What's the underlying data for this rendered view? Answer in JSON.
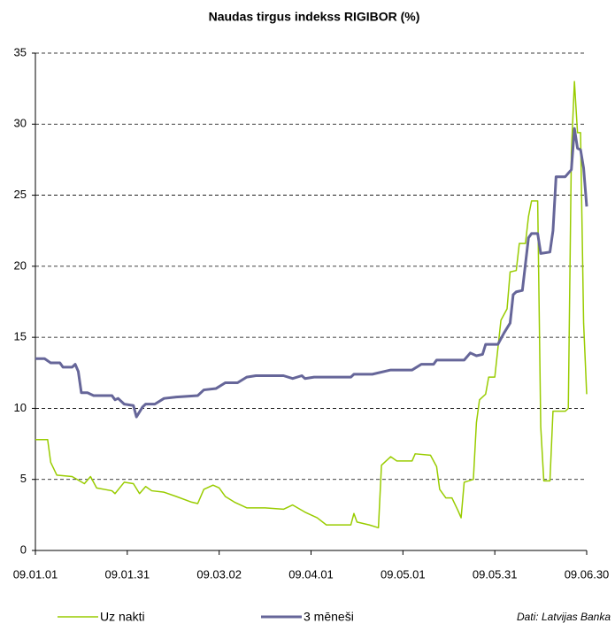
{
  "chart_data": {
    "type": "line",
    "title": "Naudas tirgus indekss RIGIBOR (%)",
    "source": "Dati: Latvijas Banka",
    "legend": "bottom",
    "grid": true,
    "xlim": [
      "09.01.01",
      "09.06.30"
    ],
    "xticks": [
      "09.01.01",
      "09.01.31",
      "09.03.02",
      "09.04.01",
      "09.05.01",
      "09.05.31",
      "09.06.30"
    ],
    "ylim": [
      0,
      35
    ],
    "yticks": [
      0,
      5,
      10,
      15,
      20,
      25,
      30,
      35
    ],
    "series": [
      {
        "name": "Uz nakti",
        "color": "#99cc00",
        "x": [
          "09.01.01",
          "09.01.05",
          "09.01.06",
          "09.01.08",
          "09.01.13",
          "09.01.17",
          "09.01.19",
          "09.01.21",
          "09.01.26",
          "09.01.27",
          "09.01.30",
          "09.02.02",
          "09.02.04",
          "09.02.06",
          "09.02.08",
          "09.02.12",
          "09.02.16",
          "09.02.21",
          "09.02.23",
          "09.02.25",
          "09.02.28",
          "09.03.02",
          "09.03.04",
          "09.03.07",
          "09.03.11",
          "09.03.17",
          "09.03.23",
          "09.03.26",
          "09.03.30",
          "09.04.03",
          "09.04.06",
          "09.04.14",
          "09.04.15",
          "09.04.16",
          "09.04.20",
          "09.04.23",
          "09.04.24",
          "09.04.27",
          "09.04.29",
          "09.05.04",
          "09.05.05",
          "09.05.10",
          "09.05.12",
          "09.05.13",
          "09.05.15",
          "09.05.17",
          "09.05.19",
          "09.05.20",
          "09.05.21",
          "09.05.24",
          "09.05.25",
          "09.05.26",
          "09.05.28",
          "09.05.29",
          "09.05.31",
          "09.06.02",
          "09.06.04",
          "09.06.05",
          "09.06.07",
          "09.06.08",
          "09.06.10",
          "09.06.11",
          "09.06.12",
          "09.06.14",
          "09.06.15",
          "09.06.16",
          "09.06.18",
          "09.06.19",
          "09.06.23",
          "09.06.24",
          "09.06.25",
          "09.06.26",
          "09.06.27",
          "09.06.28",
          "09.06.29",
          "09.06.30"
        ],
        "values": [
          7.8,
          7.8,
          6.2,
          5.3,
          5.2,
          4.7,
          5.2,
          4.4,
          4.2,
          4.0,
          4.8,
          4.7,
          4.0,
          4.5,
          4.2,
          4.1,
          3.8,
          3.4,
          3.3,
          4.3,
          4.6,
          4.4,
          3.8,
          3.4,
          3.0,
          3.0,
          2.9,
          3.2,
          2.7,
          2.3,
          1.8,
          1.8,
          2.6,
          2.0,
          1.8,
          1.6,
          6.0,
          6.6,
          6.3,
          6.3,
          6.8,
          6.7,
          5.9,
          4.3,
          3.7,
          3.7,
          2.8,
          2.3,
          4.8,
          5.0,
          9.0,
          10.6,
          11.0,
          12.2,
          12.2,
          16.2,
          17.0,
          19.6,
          19.7,
          21.6,
          21.6,
          23.5,
          24.6,
          24.6,
          8.7,
          4.9,
          4.9,
          9.8,
          9.8,
          10.0,
          28.0,
          33.0,
          29.4,
          29.4,
          16.0,
          11.0
        ]
      },
      {
        "name": "3 mēneši",
        "color": "#666699",
        "x": [
          "09.01.01",
          "09.01.04",
          "09.01.06",
          "09.01.09",
          "09.01.10",
          "09.01.13",
          "09.01.14",
          "09.01.15",
          "09.01.16",
          "09.01.18",
          "09.01.20",
          "09.01.26",
          "09.01.27",
          "09.01.28",
          "09.01.30",
          "09.02.02",
          "09.02.03",
          "09.02.05",
          "09.02.06",
          "09.02.09",
          "09.02.12",
          "09.02.16",
          "09.02.23",
          "09.02.25",
          "09.03.01",
          "09.03.04",
          "09.03.08",
          "09.03.11",
          "09.03.14",
          "09.03.23",
          "09.03.26",
          "09.03.29",
          "09.03.30",
          "09.04.02",
          "09.04.14",
          "09.04.15",
          "09.04.21",
          "09.04.27",
          "09.05.04",
          "09.05.07",
          "09.05.11",
          "09.05.12",
          "09.05.21",
          "09.05.23",
          "09.05.25",
          "09.05.27",
          "09.05.28",
          "09.06.01",
          "09.06.03",
          "09.06.05",
          "09.06.06",
          "09.06.07",
          "09.06.09",
          "09.06.11",
          "09.06.12",
          "09.06.14",
          "09.06.15",
          "09.06.18",
          "09.06.19",
          "09.06.20",
          "09.06.23",
          "09.06.25",
          "09.06.26",
          "09.06.27",
          "09.06.28",
          "09.06.29",
          "09.06.30"
        ],
        "values": [
          13.5,
          13.5,
          13.2,
          13.2,
          12.9,
          12.9,
          13.1,
          12.6,
          11.1,
          11.1,
          10.9,
          10.9,
          10.6,
          10.7,
          10.3,
          10.2,
          9.4,
          10.1,
          10.3,
          10.3,
          10.7,
          10.8,
          10.9,
          11.3,
          11.4,
          11.8,
          11.8,
          12.2,
          12.3,
          12.3,
          12.1,
          12.3,
          12.1,
          12.2,
          12.2,
          12.4,
          12.4,
          12.7,
          12.7,
          13.1,
          13.1,
          13.4,
          13.4,
          13.9,
          13.7,
          13.8,
          14.5,
          14.5,
          15.3,
          16.0,
          18.0,
          18.2,
          18.3,
          22.0,
          22.3,
          22.3,
          20.9,
          21.0,
          22.5,
          26.3,
          26.3,
          26.8,
          29.7,
          28.3,
          28.2,
          26.9,
          24.2
        ]
      }
    ]
  }
}
